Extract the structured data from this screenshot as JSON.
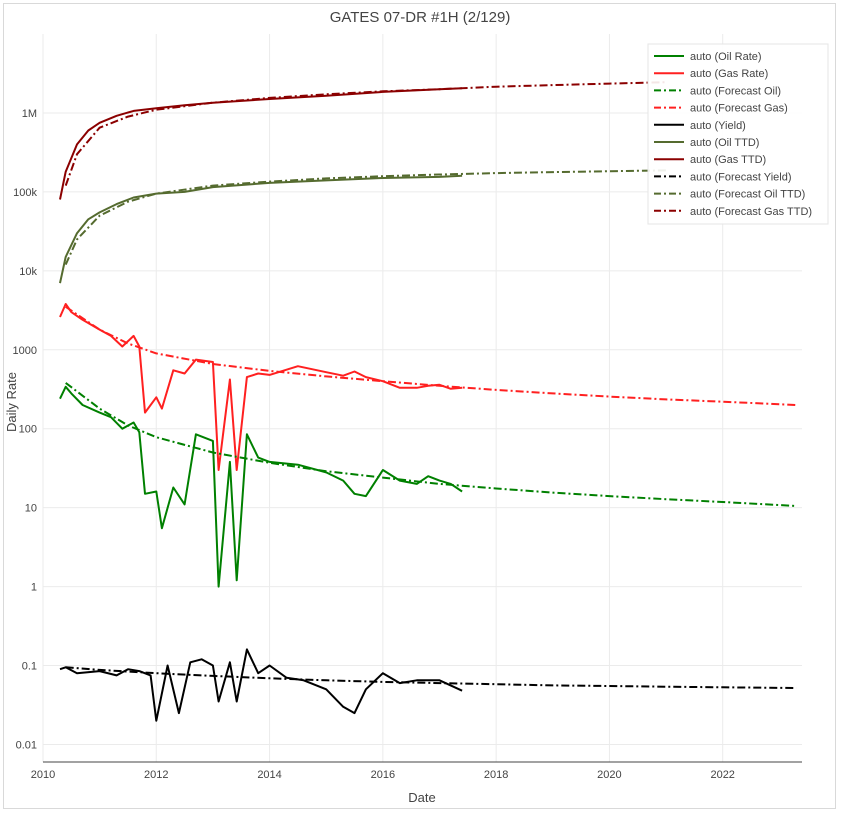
{
  "chart_data": {
    "type": "line",
    "title": "GATES 07-DR #1H (2/129)",
    "xlabel": "Date",
    "ylabel": "Daily Rate",
    "yscale": "log",
    "xlim": [
      2010.0,
      2023.4
    ],
    "ylim": [
      0.006,
      10000000
    ],
    "x_ticks": [
      2010,
      2012,
      2014,
      2016,
      2018,
      2020,
      2022
    ],
    "x_tick_labels": [
      "2010",
      "2012",
      "2014",
      "2016",
      "2018",
      "2020",
      "2022"
    ],
    "y_ticks": [
      0.01,
      0.1,
      1,
      10,
      100,
      1000,
      10000,
      100000,
      1000000
    ],
    "y_tick_labels": [
      "0.01",
      "0.1",
      "1",
      "10",
      "100",
      "1000",
      "10k",
      "100k",
      "1M"
    ],
    "grid": true,
    "legend_position": "top-right",
    "series": [
      {
        "name": "auto (Oil Rate)",
        "color": "#008000",
        "dash": "solid",
        "x": [
          2010.3,
          2010.4,
          2010.5,
          2010.7,
          2011.0,
          2011.2,
          2011.4,
          2011.6,
          2011.7,
          2011.8,
          2012.0,
          2012.1,
          2012.3,
          2012.5,
          2012.7,
          2013.0,
          2013.1,
          2013.3,
          2013.42,
          2013.6,
          2013.8,
          2014.0,
          2014.5,
          2015.0,
          2015.3,
          2015.5,
          2015.7,
          2016.0,
          2016.3,
          2016.6,
          2016.8,
          2017.0,
          2017.2,
          2017.4
        ],
        "y": [
          240,
          340,
          280,
          200,
          160,
          140,
          100,
          120,
          90,
          15,
          16,
          5.5,
          18,
          11,
          85,
          70,
          1,
          38,
          1.2,
          85,
          43,
          38,
          35,
          28,
          22,
          15,
          14,
          30,
          22,
          20,
          25,
          22,
          20,
          16
        ]
      },
      {
        "name": "auto (Gas Rate)",
        "color": "#ff2020",
        "dash": "solid",
        "x": [
          2010.3,
          2010.4,
          2010.5,
          2010.7,
          2011.0,
          2011.2,
          2011.4,
          2011.6,
          2011.7,
          2011.8,
          2012.0,
          2012.1,
          2012.3,
          2012.5,
          2012.7,
          2013.0,
          2013.1,
          2013.3,
          2013.42,
          2013.6,
          2013.8,
          2014.0,
          2014.5,
          2015.0,
          2015.3,
          2015.5,
          2015.7,
          2016.0,
          2016.3,
          2016.6,
          2016.8,
          2017.0,
          2017.2,
          2017.4
        ],
        "y": [
          2600,
          3800,
          3000,
          2400,
          1800,
          1500,
          1100,
          1500,
          1100,
          160,
          250,
          180,
          550,
          500,
          750,
          700,
          30,
          420,
          30,
          450,
          500,
          480,
          620,
          520,
          470,
          530,
          450,
          400,
          330,
          330,
          350,
          360,
          320,
          330
        ]
      },
      {
        "name": "auto (Forecast Oil)",
        "color": "#008000",
        "dash": "dashdot",
        "x": [
          2010.4,
          2011.0,
          2011.5,
          2012.0,
          2013.0,
          2014.0,
          2015.0,
          2016.0,
          2017.0,
          2018.0,
          2019.0,
          2020.0,
          2021.0,
          2022.0,
          2023.3
        ],
        "y": [
          380,
          180,
          110,
          78,
          50,
          37,
          29,
          24,
          20,
          17.5,
          15.5,
          14,
          12.8,
          11.8,
          10.5
        ]
      },
      {
        "name": "auto (Forecast Gas)",
        "color": "#ff2020",
        "dash": "dashdot",
        "x": [
          2010.4,
          2011.0,
          2011.5,
          2012.0,
          2013.0,
          2014.0,
          2015.0,
          2016.0,
          2017.0,
          2018.0,
          2019.0,
          2020.0,
          2021.0,
          2022.0,
          2023.3
        ],
        "y": [
          3500,
          1800,
          1200,
          900,
          660,
          540,
          460,
          400,
          350,
          310,
          280,
          255,
          235,
          220,
          200
        ]
      },
      {
        "name": "auto (Yield)",
        "color": "#000000",
        "dash": "solid",
        "x": [
          2010.3,
          2010.4,
          2010.6,
          2011.0,
          2011.3,
          2011.5,
          2011.7,
          2011.9,
          2012.0,
          2012.2,
          2012.4,
          2012.6,
          2012.8,
          2013.0,
          2013.1,
          2013.3,
          2013.42,
          2013.6,
          2013.8,
          2014.0,
          2014.3,
          2014.6,
          2015.0,
          2015.3,
          2015.5,
          2015.7,
          2016.0,
          2016.3,
          2016.6,
          2017.0,
          2017.4
        ],
        "y": [
          0.09,
          0.095,
          0.08,
          0.085,
          0.075,
          0.09,
          0.085,
          0.075,
          0.02,
          0.1,
          0.025,
          0.11,
          0.12,
          0.1,
          0.035,
          0.11,
          0.035,
          0.16,
          0.08,
          0.1,
          0.07,
          0.065,
          0.05,
          0.03,
          0.025,
          0.05,
          0.08,
          0.06,
          0.065,
          0.065,
          0.048
        ]
      },
      {
        "name": "auto (Oil TTD)",
        "color": "#556b2f",
        "dash": "solid",
        "x": [
          2010.3,
          2010.4,
          2010.6,
          2010.8,
          2011.0,
          2011.3,
          2011.6,
          2012.0,
          2012.5,
          2013.0,
          2014.0,
          2015.0,
          2016.0,
          2017.0,
          2017.4
        ],
        "y": [
          7000,
          15000,
          30000,
          45000,
          55000,
          70000,
          85000,
          95000,
          100000,
          115000,
          130000,
          140000,
          150000,
          155000,
          160000
        ]
      },
      {
        "name": "auto (Gas TTD)",
        "color": "#8b0000",
        "dash": "solid",
        "x": [
          2010.3,
          2010.4,
          2010.6,
          2010.8,
          2011.0,
          2011.3,
          2011.6,
          2012.0,
          2012.5,
          2013.0,
          2014.0,
          2015.0,
          2016.0,
          2017.0,
          2017.4
        ],
        "y": [
          80000,
          180000,
          400000,
          600000,
          750000,
          920000,
          1060000,
          1150000,
          1250000,
          1350000,
          1500000,
          1650000,
          1850000,
          2000000,
          2050000
        ]
      },
      {
        "name": "auto (Forecast Yield)",
        "color": "#000000",
        "dash": "dashdot",
        "x": [
          2010.4,
          2011.0,
          2012.0,
          2013.0,
          2014.0,
          2015.0,
          2016.0,
          2017.0,
          2018.0,
          2019.0,
          2020.0,
          2021.0,
          2022.0,
          2023.3
        ],
        "y": [
          0.095,
          0.088,
          0.08,
          0.074,
          0.069,
          0.065,
          0.062,
          0.06,
          0.058,
          0.056,
          0.055,
          0.054,
          0.053,
          0.052
        ]
      },
      {
        "name": "auto (Forecast Oil TTD)",
        "color": "#556b2f",
        "dash": "dashdot",
        "x": [
          2010.4,
          2010.6,
          2011.0,
          2011.5,
          2012.0,
          2013.0,
          2014.0,
          2015.0,
          2016.0,
          2017.0,
          2018.0,
          2019.0,
          2020.0,
          2021.0
        ],
        "y": [
          12000,
          25000,
          50000,
          75000,
          95000,
          120000,
          135000,
          148000,
          158000,
          166000,
          173000,
          178000,
          183000,
          187000
        ]
      },
      {
        "name": "auto (Forecast Gas TTD)",
        "color": "#8b0000",
        "dash": "dashdot",
        "x": [
          2010.4,
          2010.6,
          2011.0,
          2011.5,
          2012.0,
          2013.0,
          2014.0,
          2015.0,
          2016.0,
          2017.0,
          2018.0,
          2019.0,
          2020.0,
          2021.0
        ],
        "y": [
          120000,
          300000,
          650000,
          900000,
          1100000,
          1350000,
          1550000,
          1720000,
          1880000,
          2000000,
          2150000,
          2250000,
          2350000,
          2450000
        ]
      }
    ]
  }
}
